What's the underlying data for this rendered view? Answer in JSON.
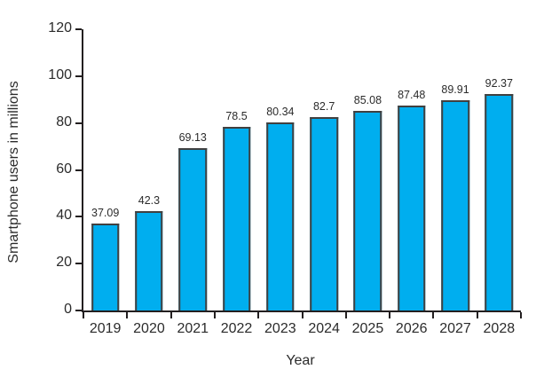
{
  "chart_data": {
    "type": "bar",
    "title": "",
    "xlabel": "Year",
    "ylabel": "Smartphone users in millions",
    "categories": [
      "2019",
      "2020",
      "2021",
      "2022",
      "2023",
      "2024",
      "2025",
      "2026",
      "2027",
      "2028"
    ],
    "values": [
      37.09,
      42.3,
      69.13,
      78.5,
      80.34,
      82.7,
      85.08,
      87.48,
      89.91,
      92.37
    ],
    "data_labels": [
      "37.09",
      "42.3",
      "69.13",
      "78.5",
      "80.34",
      "82.7",
      "85.08",
      "87.48",
      "89.91",
      "92.37"
    ],
    "ylim": [
      0,
      120
    ],
    "ytick_step": 20,
    "ytick_labels": [
      "0",
      "20",
      "40",
      "60",
      "80",
      "100",
      "120"
    ],
    "grid": false,
    "legend": false,
    "colors": {
      "bar_fill": "#00AEEF",
      "bar_border": "#404040",
      "axis": "#231F20",
      "text": "#2b2b2b"
    }
  }
}
